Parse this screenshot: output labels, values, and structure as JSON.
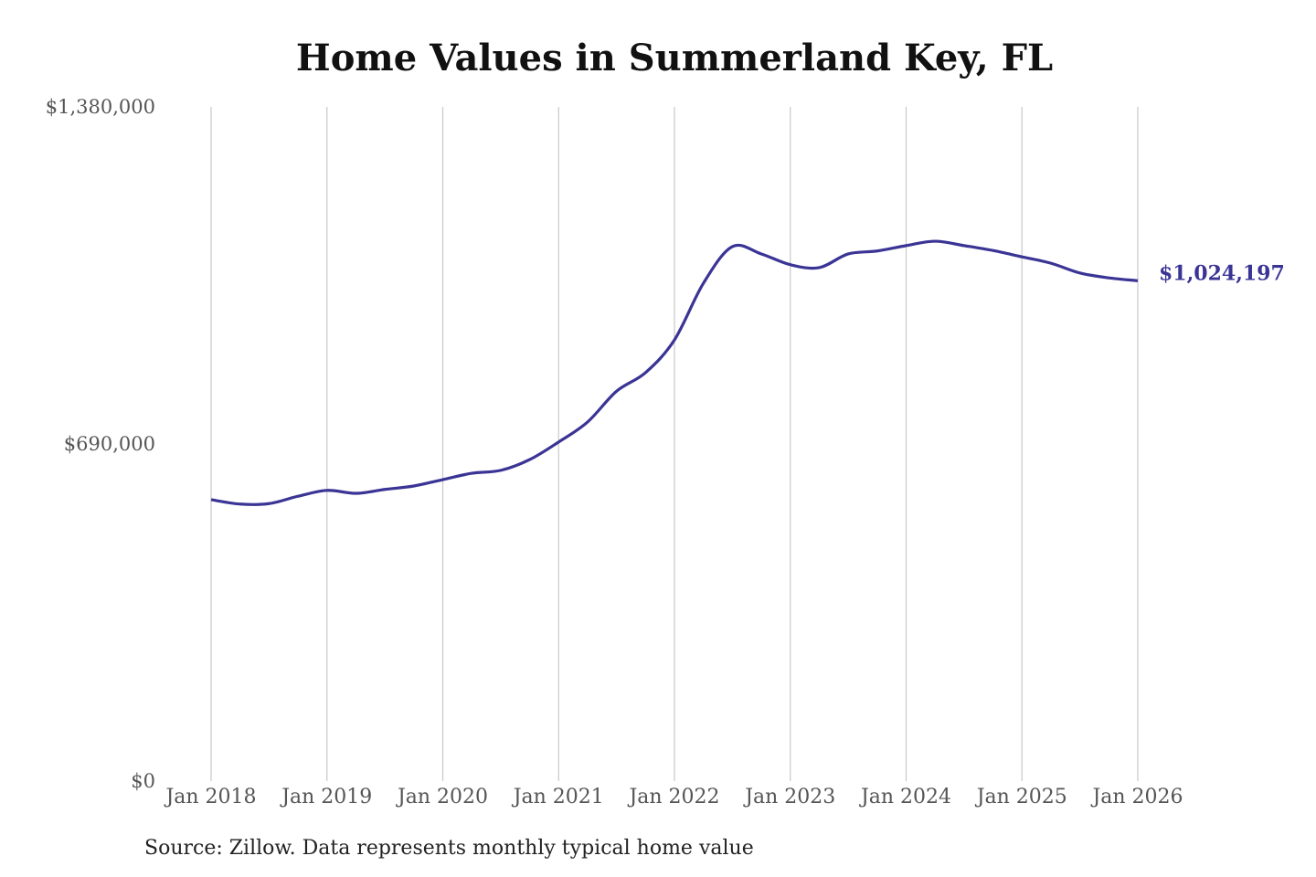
{
  "chart_data": {
    "type": "line",
    "title": "Home Values in Summerland Key, FL",
    "source": "Source: Zillow. Data represents monthly typical home value",
    "ylim": [
      0,
      1380000
    ],
    "yticks": [
      0,
      690000,
      1380000
    ],
    "ytick_labels": [
      "$0",
      "$690,000",
      "$1,380,000"
    ],
    "xlim": [
      "2018-01",
      "2026-01"
    ],
    "xtick_labels": [
      "Jan 2018",
      "Jan 2019",
      "Jan 2020",
      "Jan 2021",
      "Jan 2022",
      "Jan 2023",
      "Jan 2024",
      "Jan 2025",
      "Jan 2026"
    ],
    "grid": "vertical",
    "line_color": "#3a3495",
    "end_label": "$1,024,197",
    "x": [
      "2018-01",
      "2018-04",
      "2018-07",
      "2018-10",
      "2019-01",
      "2019-04",
      "2019-07",
      "2019-10",
      "2020-01",
      "2020-04",
      "2020-07",
      "2020-10",
      "2021-01",
      "2021-04",
      "2021-07",
      "2021-10",
      "2022-01",
      "2022-04",
      "2022-07",
      "2022-10",
      "2023-01",
      "2023-04",
      "2023-07",
      "2023-10",
      "2024-01",
      "2024-04",
      "2024-07",
      "2024-10",
      "2025-01",
      "2025-04",
      "2025-07",
      "2025-10",
      "2026-01"
    ],
    "values": [
      576000,
      567000,
      568000,
      583000,
      595000,
      589000,
      597000,
      604000,
      617000,
      630000,
      636000,
      658000,
      694000,
      735000,
      798000,
      836000,
      903000,
      1019000,
      1094000,
      1079000,
      1057000,
      1051000,
      1079000,
      1085000,
      1096000,
      1105000,
      1096000,
      1086000,
      1073000,
      1060000,
      1040000,
      1030000,
      1024197
    ]
  }
}
